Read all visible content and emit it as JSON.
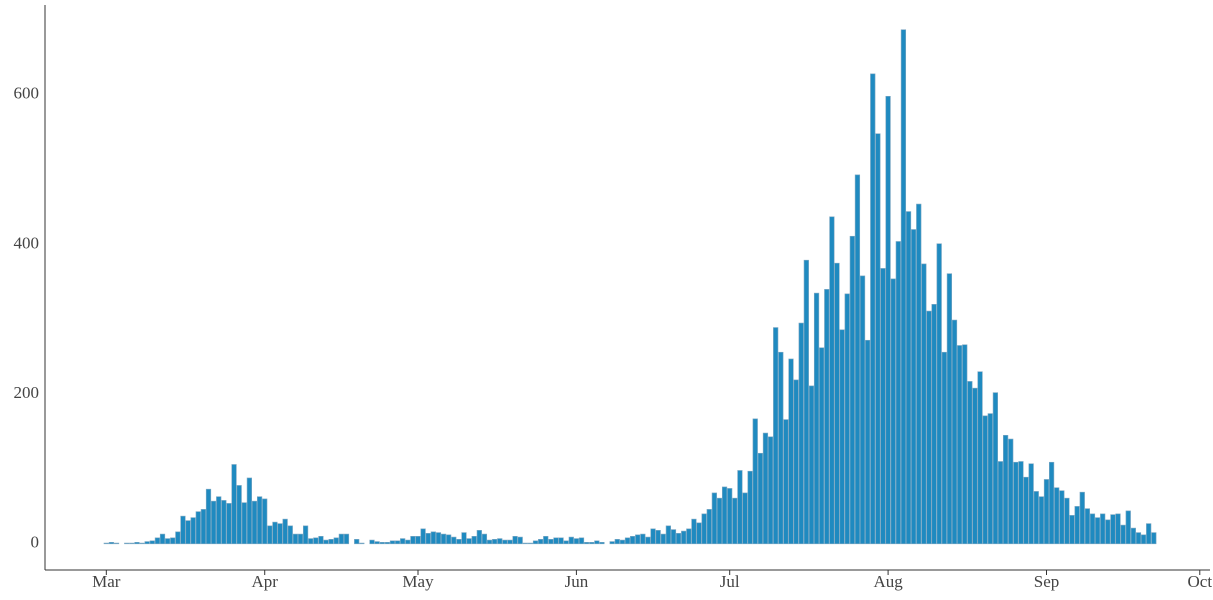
{
  "chart_data": {
    "type": "bar",
    "x": [
      0,
      1,
      2,
      3,
      4,
      5,
      6,
      7,
      8,
      9,
      10,
      11,
      12,
      13,
      14,
      15,
      16,
      17,
      18,
      19,
      20,
      21,
      22,
      23,
      24,
      25,
      26,
      27,
      28,
      29,
      30,
      31,
      32,
      33,
      34,
      35,
      36,
      37,
      38,
      39,
      40,
      41,
      42,
      43,
      44,
      45,
      46,
      47,
      48,
      49,
      50,
      51,
      52,
      53,
      54,
      55,
      56,
      57,
      58,
      59,
      60,
      61,
      62,
      63,
      64,
      65,
      66,
      67,
      68,
      69,
      70,
      71,
      72,
      73,
      74,
      75,
      76,
      77,
      78,
      79,
      80,
      81,
      82,
      83,
      84,
      85,
      86,
      87,
      88,
      89,
      90,
      91,
      92,
      93,
      94,
      95,
      96,
      97,
      98,
      99,
      100,
      101,
      102,
      103,
      104,
      105,
      106,
      107,
      108,
      109,
      110,
      111,
      112,
      113,
      114,
      115,
      116,
      117,
      118,
      119,
      120,
      121,
      122,
      123,
      124,
      125,
      126,
      127,
      128,
      129,
      130,
      131,
      132,
      133,
      134,
      135,
      136,
      137,
      138,
      139,
      140,
      141,
      142,
      143,
      144,
      145,
      146,
      147,
      148,
      149,
      150,
      151,
      152,
      153,
      154,
      155,
      156,
      157,
      158,
      159,
      160,
      161,
      162,
      163,
      164,
      165,
      166,
      167,
      168,
      169,
      170,
      171,
      172,
      173,
      174,
      175,
      176,
      177,
      178,
      179,
      180,
      181,
      182,
      183,
      184,
      185,
      186,
      187,
      188,
      189,
      190,
      191,
      192,
      193,
      194,
      195,
      196,
      197,
      198,
      199,
      200,
      201,
      202,
      203,
      204,
      205
    ],
    "values": [
      1,
      2,
      1,
      0,
      1,
      1,
      2,
      1,
      3,
      4,
      8,
      13,
      7,
      8,
      16,
      37,
      31,
      35,
      43,
      46,
      73,
      57,
      63,
      58,
      54,
      106,
      78,
      55,
      88,
      57,
      63,
      60,
      24,
      29,
      27,
      33,
      24,
      13,
      13,
      24,
      7,
      8,
      10,
      5,
      6,
      8,
      13,
      13,
      0,
      6,
      1,
      0,
      5,
      3,
      2,
      2,
      4,
      4,
      7,
      5,
      10,
      10,
      20,
      14,
      16,
      15,
      13,
      12,
      9,
      6,
      15,
      7,
      10,
      18,
      13,
      5,
      6,
      7,
      5,
      5,
      10,
      9,
      1,
      1,
      4,
      6,
      10,
      6,
      8,
      8,
      4,
      9,
      7,
      8,
      2,
      2,
      4,
      2,
      0,
      3,
      6,
      5,
      8,
      10,
      12,
      13,
      9,
      20,
      18,
      13,
      24,
      19,
      14,
      17,
      20,
      33,
      28,
      40,
      46,
      68,
      61,
      76,
      74,
      61,
      98,
      68,
      97,
      167,
      121,
      148,
      143,
      289,
      256,
      166,
      247,
      219,
      295,
      379,
      211,
      335,
      262,
      340,
      437,
      375,
      286,
      334,
      411,
      493,
      358,
      272,
      628,
      548,
      368,
      598,
      354,
      404,
      687,
      444,
      420,
      454,
      374,
      311,
      320,
      401,
      256,
      361,
      299,
      265,
      266,
      217,
      208,
      230,
      171,
      174,
      202,
      110,
      145,
      140,
      109,
      110,
      89,
      107,
      70,
      63,
      86,
      109,
      75,
      71,
      61,
      38,
      50,
      69,
      47,
      40,
      35,
      40,
      32,
      39,
      40,
      25,
      44,
      21,
      15,
      12,
      27,
      15
    ],
    "color": "#1f8ac0",
    "xlim": [
      -12,
      216
    ],
    "xticks": [
      {
        "value": 0,
        "label": "Mar"
      },
      {
        "value": 31,
        "label": "Apr"
      },
      {
        "value": 61,
        "label": "May"
      },
      {
        "value": 92,
        "label": "Jun"
      },
      {
        "value": 122,
        "label": "Jul"
      },
      {
        "value": 153,
        "label": "Aug"
      },
      {
        "value": 184,
        "label": "Sep"
      },
      {
        "value": 214,
        "label": "Oct"
      }
    ],
    "ylim": [
      -35,
      720
    ],
    "yticks": [
      0,
      200,
      400,
      600
    ],
    "grid": false
  }
}
